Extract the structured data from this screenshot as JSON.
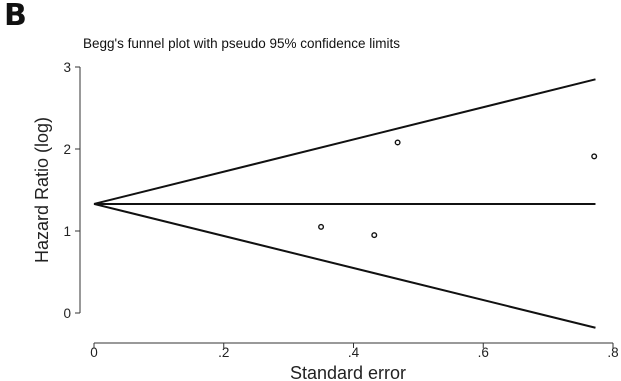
{
  "panel_letter": "B",
  "chart_data": {
    "type": "scatter",
    "title": "Begg's funnel plot with pseudo 95% confidence limits",
    "xlabel": "Standard error",
    "ylabel": "Hazard Ratio (log)",
    "xlim": [
      0,
      0.8
    ],
    "ylim": [
      0,
      3
    ],
    "x_ticks": [
      0,
      0.2,
      0.4,
      0.6,
      0.8
    ],
    "x_tick_labels": [
      "0",
      ".2",
      ".4",
      ".6",
      ".8"
    ],
    "y_ticks": [
      0,
      1,
      2,
      3
    ],
    "y_tick_labels": [
      "0",
      "1",
      "2",
      "3"
    ],
    "grid": false,
    "pooled_estimate": 1.33,
    "confidence_limits": {
      "x": [
        0,
        0.773
      ],
      "upper": [
        1.33,
        2.85
      ],
      "lower": [
        1.33,
        -0.18
      ]
    },
    "points": [
      {
        "x": 0.35,
        "y": 1.05
      },
      {
        "x": 0.432,
        "y": 0.95
      },
      {
        "x": 0.468,
        "y": 2.08
      },
      {
        "x": 0.771,
        "y": 1.91
      }
    ]
  }
}
